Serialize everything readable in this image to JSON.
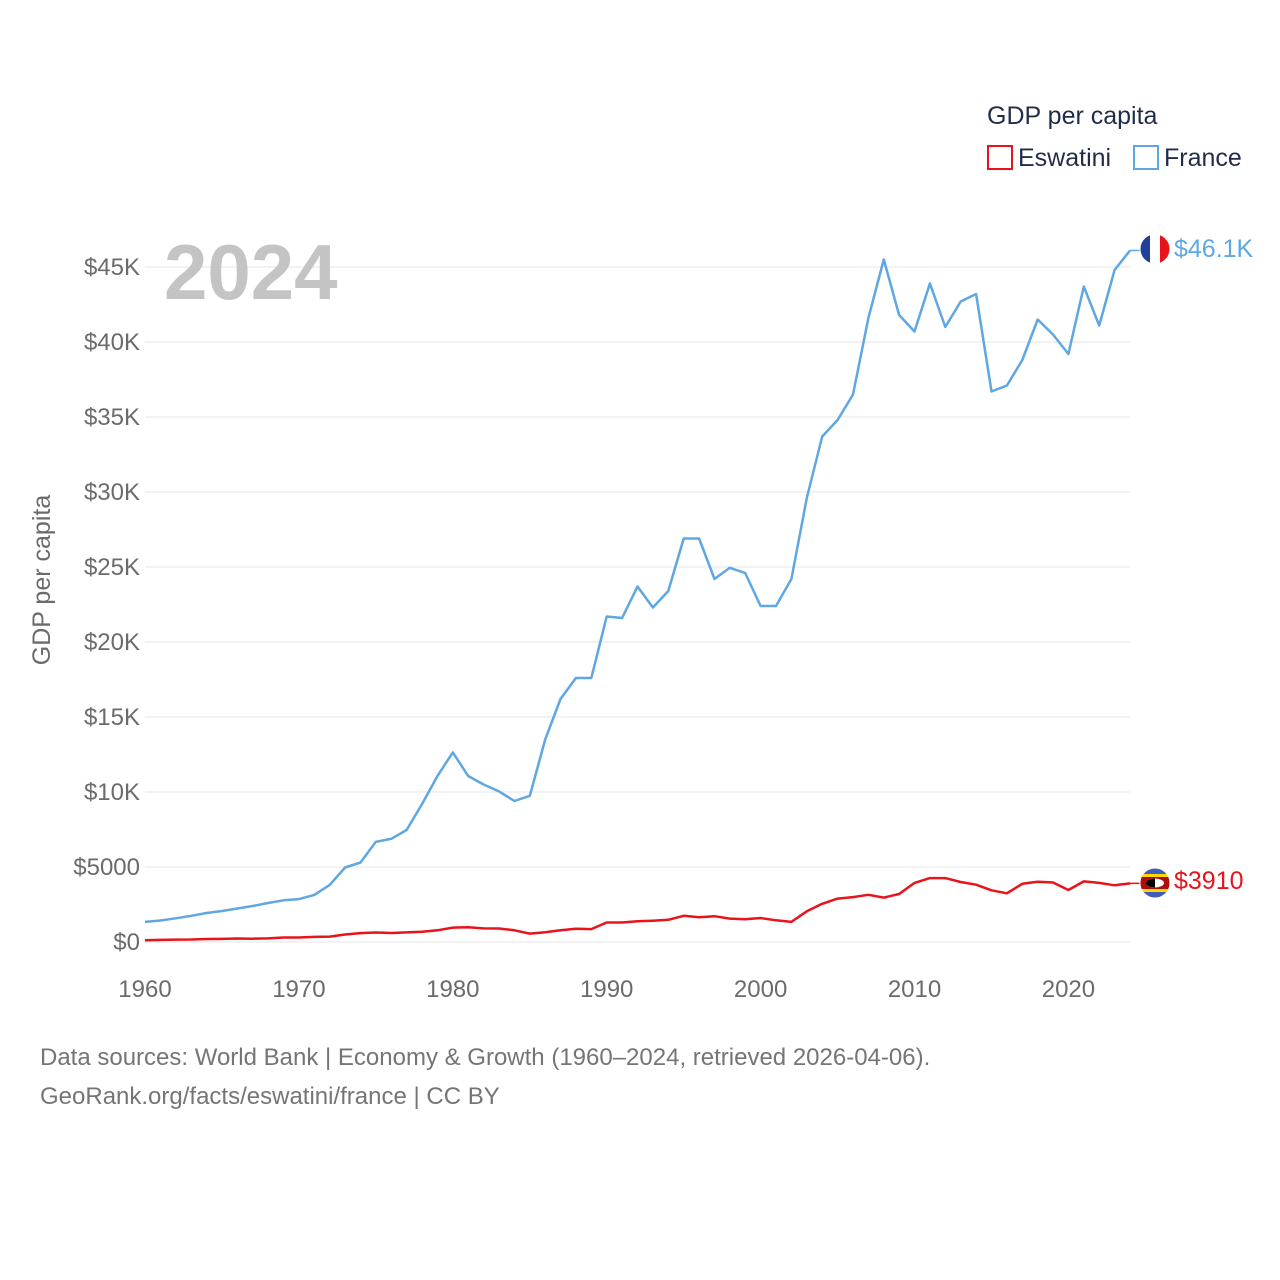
{
  "chart_data": {
    "type": "line",
    "year_label": "2024",
    "ylabel": "GDP per capita",
    "xlabel": "",
    "xlim": [
      1960,
      2024
    ],
    "ylim": [
      0,
      45000
    ],
    "x_ticks": [
      1960,
      1970,
      1980,
      1990,
      2000,
      2010,
      2020
    ],
    "x_tick_labels": [
      "1960",
      "1970",
      "1980",
      "1990",
      "2000",
      "2010",
      "2020"
    ],
    "y_ticks": [
      0,
      5000,
      10000,
      15000,
      20000,
      25000,
      30000,
      35000,
      40000,
      45000
    ],
    "y_tick_labels": [
      "$0",
      "$5000",
      "$10K",
      "$15K",
      "$20K",
      "$25K",
      "$30K",
      "$35K",
      "$40K",
      "$45K"
    ],
    "legend": {
      "title": "GDP per capita",
      "position": "top-right",
      "items": [
        {
          "name": "Eswatini",
          "color": "#e8131b"
        },
        {
          "name": "France",
          "color": "#5fa7e3"
        }
      ]
    },
    "series": [
      {
        "name": "France",
        "color": "#5fa7e3",
        "end_label": "$46.1K",
        "start_year": 1960,
        "values": [
          1340,
          1430,
          1580,
          1750,
          1930,
          2070,
          2230,
          2400,
          2600,
          2780,
          2860,
          3140,
          3810,
          4970,
          5300,
          6680,
          6880,
          7470,
          9190,
          11060,
          12640,
          11070,
          10500,
          10040,
          9400,
          9750,
          13500,
          16200,
          17600,
          17600,
          21700,
          21600,
          23700,
          22300,
          23400,
          26900,
          26900,
          24200,
          24950,
          24600,
          22400,
          22400,
          24200,
          29600,
          33700,
          34800,
          36500,
          41600,
          45500,
          41800,
          40700,
          43900,
          41000,
          42700,
          43200,
          36700,
          37100,
          38800,
          41500,
          40500,
          39200,
          43700,
          41100,
          44800,
          46100
        ]
      },
      {
        "name": "Eswatini",
        "color": "#e8131b",
        "end_label": "$3910",
        "start_year": 1960,
        "values": [
          120,
          140,
          160,
          170,
          200,
          210,
          230,
          220,
          240,
          300,
          300,
          340,
          360,
          500,
          590,
          630,
          600,
          640,
          680,
          780,
          960,
          980,
          910,
          900,
          780,
          560,
          650,
          780,
          880,
          860,
          1300,
          1300,
          1380,
          1420,
          1480,
          1750,
          1650,
          1720,
          1560,
          1520,
          1600,
          1450,
          1340,
          2050,
          2550,
          2890,
          2990,
          3150,
          2960,
          3200,
          3940,
          4260,
          4260,
          4000,
          3820,
          3450,
          3250,
          3880,
          4020,
          3970,
          3470,
          4040,
          3940,
          3780,
          3910
        ]
      }
    ]
  },
  "source_line_1": "Data sources: World Bank | Economy & Growth (1960–2024, retrieved 2026-04-06).",
  "source_line_2": "GeoRank.org/facts/eswatini/france | CC BY"
}
